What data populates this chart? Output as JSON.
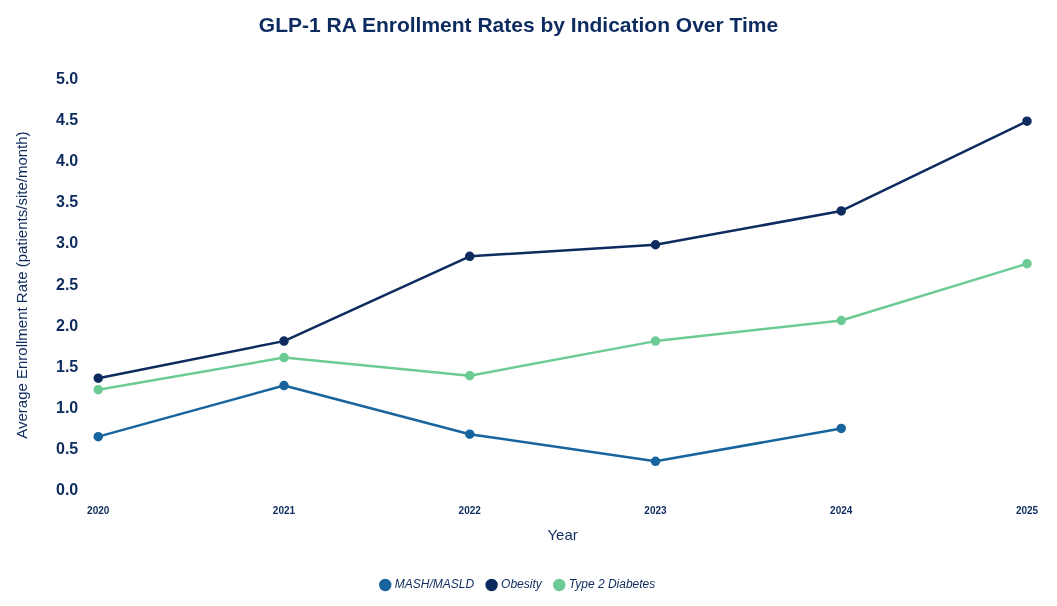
{
  "chart_data": {
    "type": "line",
    "title": "GLP-1 RA Enrollment Rates by Indication Over Time",
    "xlabel": "Year",
    "ylabel": "Average Enrollment Rate (patients/site/month)",
    "categories": [
      "2020",
      "2021",
      "2022",
      "2023",
      "2024",
      "2025"
    ],
    "series": [
      {
        "name": "MASH/MASLD",
        "color": "#17649e",
        "values": [
          0.66,
          1.28,
          0.69,
          0.36,
          0.76,
          null
        ]
      },
      {
        "name": "Obesity",
        "color": "#0d2b5e",
        "values": [
          1.37,
          1.82,
          2.85,
          2.99,
          3.4,
          4.49
        ]
      },
      {
        "name": "Type 2 Diabetes",
        "color": "#6ccb94",
        "values": [
          1.23,
          1.62,
          1.4,
          1.82,
          2.07,
          2.76
        ]
      }
    ],
    "ylim": [
      0,
      5
    ],
    "yticks": [
      {
        "value": 0,
        "label": "0.0"
      },
      {
        "value": 0.5,
        "label": "0.5"
      },
      {
        "value": 1,
        "label": "1.0"
      },
      {
        "value": 1.5,
        "label": "1.5"
      },
      {
        "value": 2,
        "label": "2.0"
      },
      {
        "value": 2.5,
        "label": "2.5"
      },
      {
        "value": 3,
        "label": "3.0"
      },
      {
        "value": 3.5,
        "label": "3.5"
      },
      {
        "value": 4,
        "label": "4.0"
      },
      {
        "value": 4.5,
        "label": "4.5"
      },
      {
        "value": 5,
        "label": "5.0"
      }
    ],
    "grid": false,
    "legend": "bottom",
    "marker": "circle",
    "line_style": "solid"
  }
}
